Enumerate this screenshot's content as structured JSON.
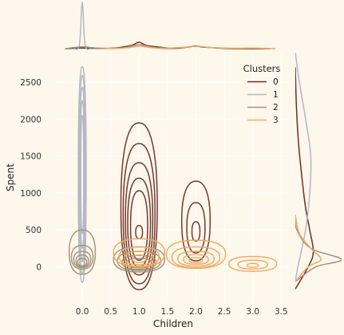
{
  "chart_data": {
    "type": "kde-joint",
    "xlabel": "Children",
    "ylabel": "Spent",
    "xlim": [
      -0.45,
      3.65
    ],
    "ylim": [
      -480,
      2900
    ],
    "x_ticks": [
      0.0,
      0.5,
      1.0,
      1.5,
      2.0,
      2.5,
      3.0,
      3.5
    ],
    "x_tick_labels": [
      "0.0",
      "0.5",
      "1.0",
      "1.5",
      "2.0",
      "2.5",
      "3.0",
      "3.5"
    ],
    "y_ticks": [
      0,
      500,
      1000,
      1500,
      2000,
      2500
    ],
    "y_tick_labels": [
      "0",
      "500",
      "1000",
      "1500",
      "2000",
      "2500"
    ],
    "grid": true,
    "legend": {
      "title": "Clusters",
      "placement": "top-right",
      "entries": [
        "0",
        "1",
        "2",
        "3"
      ]
    },
    "series": [
      {
        "name": "0",
        "color": "#6b2f26",
        "contours": [
          {
            "center": [
              1.0,
              820
            ],
            "radius": [
              0.32,
              1130
            ]
          },
          {
            "center": [
              1.0,
              720
            ],
            "radius": [
              0.28,
              950
            ]
          },
          {
            "center": [
              1.0,
              650
            ],
            "radius": [
              0.24,
              760
            ]
          },
          {
            "center": [
              1.0,
              600
            ],
            "radius": [
              0.2,
              600
            ]
          },
          {
            "center": [
              1.0,
              560
            ],
            "radius": [
              0.15,
              470
            ]
          },
          {
            "center": [
              1.0,
              470
            ],
            "radius": [
              0.06,
              90
            ]
          },
          {
            "center": [
              2.0,
              620
            ],
            "radius": [
              0.25,
              540
            ]
          },
          {
            "center": [
              2.0,
              530
            ],
            "radius": [
              0.16,
              340
            ]
          },
          {
            "center": [
              2.0,
              480
            ],
            "radius": [
              0.07,
              130
            ]
          }
        ],
        "x_marginal": [
          [
            -0.3,
            0
          ],
          [
            0.0,
            0.5
          ],
          [
            0.5,
            0.3
          ],
          [
            0.85,
            2.5
          ],
          [
            1.0,
            5.2
          ],
          [
            1.15,
            2.5
          ],
          [
            1.6,
            0.3
          ],
          [
            1.85,
            1.2
          ],
          [
            2.0,
            2.2
          ],
          [
            2.15,
            1.2
          ],
          [
            2.6,
            0.1
          ],
          [
            3.3,
            0
          ]
        ],
        "y_marginal": [
          [
            -300,
            0
          ],
          [
            0,
            2.5
          ],
          [
            200,
            3.5
          ],
          [
            500,
            2.8
          ],
          [
            800,
            2.0
          ],
          [
            1200,
            1.3
          ],
          [
            1700,
            0.6
          ],
          [
            2200,
            0.2
          ],
          [
            2700,
            0
          ]
        ]
      },
      {
        "name": "1",
        "color": "#b4b7c3",
        "contours": [
          {
            "center": [
              0.0,
              1250
            ],
            "radius": [
              0.07,
              1460
            ]
          },
          {
            "center": [
              0.0,
              1250
            ],
            "radius": [
              0.055,
              1340
            ]
          },
          {
            "center": [
              0.0,
              1250
            ],
            "radius": [
              0.045,
              1180
            ]
          },
          {
            "center": [
              0.0,
              1250
            ],
            "radius": [
              0.035,
              1000
            ]
          },
          {
            "center": [
              0.0,
              1250
            ],
            "radius": [
              0.025,
              800
            ]
          }
        ],
        "x_marginal": [
          [
            -0.15,
            0
          ],
          [
            -0.05,
            3
          ],
          [
            0.0,
            38
          ],
          [
            0.05,
            3
          ],
          [
            0.15,
            0
          ]
        ],
        "y_marginal": [
          [
            -200,
            0
          ],
          [
            0,
            0.5
          ],
          [
            500,
            2.0
          ],
          [
            1000,
            2.8
          ],
          [
            1500,
            3.0
          ],
          [
            2000,
            2.0
          ],
          [
            2500,
            0.8
          ],
          [
            2900,
            0
          ]
        ]
      },
      {
        "name": "2",
        "color": "#a39279",
        "contours": [
          {
            "center": [
              0.0,
              200
            ],
            "radius": [
              0.23,
              300
            ]
          },
          {
            "center": [
              0.0,
              130
            ],
            "radius": [
              0.19,
              160
            ]
          },
          {
            "center": [
              0.0,
              100
            ],
            "radius": [
              0.15,
              110
            ]
          },
          {
            "center": [
              0.0,
              80
            ],
            "radius": [
              0.11,
              80
            ]
          },
          {
            "center": [
              0.0,
              65
            ],
            "radius": [
              0.08,
              50
            ]
          },
          {
            "center": [
              1.0,
              100
            ],
            "radius": [
              0.45,
              170
            ]
          },
          {
            "center": [
              1.0,
              80
            ],
            "radius": [
              0.38,
              130
            ]
          },
          {
            "center": [
              1.0,
              60
            ],
            "radius": [
              0.3,
              95
            ]
          },
          {
            "center": [
              1.0,
              50
            ],
            "radius": [
              0.22,
              65
            ]
          }
        ],
        "x_marginal": [
          [
            -0.3,
            0
          ],
          [
            0.0,
            1.5
          ],
          [
            0.3,
            0.3
          ],
          [
            0.7,
            0.5
          ],
          [
            1.0,
            3.2
          ],
          [
            1.3,
            0.6
          ],
          [
            1.6,
            0
          ]
        ],
        "y_marginal": [
          [
            -200,
            0
          ],
          [
            0,
            4.0
          ],
          [
            100,
            9.0
          ],
          [
            250,
            3.0
          ],
          [
            500,
            0.3
          ],
          [
            700,
            0
          ]
        ]
      },
      {
        "name": "3",
        "color": "#f0a95b",
        "contours": [
          {
            "center": [
              1.0,
              190
            ],
            "radius": [
              0.45,
              190
            ]
          },
          {
            "center": [
              1.0,
              140
            ],
            "radius": [
              0.35,
              130
            ]
          },
          {
            "center": [
              1.0,
              120
            ],
            "radius": [
              0.25,
              90
            ]
          },
          {
            "center": [
              1.0,
              110
            ],
            "radius": [
              0.12,
              50
            ]
          },
          {
            "center": [
              2.0,
              170
            ],
            "radius": [
              0.52,
              190
            ]
          },
          {
            "center": [
              2.0,
              130
            ],
            "radius": [
              0.42,
              140
            ]
          },
          {
            "center": [
              2.0,
              110
            ],
            "radius": [
              0.32,
              100
            ]
          },
          {
            "center": [
              2.0,
              100
            ],
            "radius": [
              0.22,
              65
            ]
          },
          {
            "center": [
              2.0,
              90
            ],
            "radius": [
              0.12,
              35
            ]
          },
          {
            "center": [
              3.0,
              40
            ],
            "radius": [
              0.42,
              100
            ]
          },
          {
            "center": [
              3.0,
              30
            ],
            "radius": [
              0.26,
              60
            ]
          },
          {
            "center": [
              3.0,
              20
            ],
            "radius": [
              0.1,
              25
            ]
          }
        ],
        "x_marginal": [
          [
            0.4,
            0
          ],
          [
            0.8,
            0.8
          ],
          [
            1.0,
            2.0
          ],
          [
            1.3,
            0.6
          ],
          [
            1.7,
            0.8
          ],
          [
            2.0,
            2.0
          ],
          [
            2.3,
            0.8
          ],
          [
            2.7,
            0.3
          ],
          [
            3.0,
            0.5
          ],
          [
            3.4,
            0
          ]
        ],
        "y_marginal": [
          [
            -200,
            0
          ],
          [
            0,
            2.5
          ],
          [
            100,
            5.0
          ],
          [
            250,
            3.0
          ],
          [
            450,
            0.8
          ],
          [
            700,
            0
          ]
        ]
      }
    ]
  }
}
